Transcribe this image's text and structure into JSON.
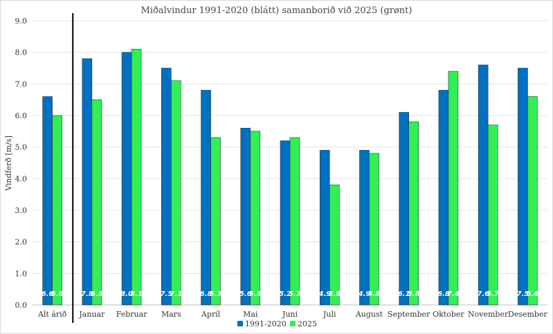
{
  "chart_data": {
    "type": "bar",
    "title": "Miðalvindur 1991-2020 (blátt) samanborið við 2025 (grønt)",
    "xlabel": "",
    "ylabel": "Vindferð [m/s]",
    "ylim": [
      0,
      9
    ],
    "yticks": [
      "0.0",
      "1.0",
      "2.0",
      "3.0",
      "4.0",
      "5.0",
      "6.0",
      "7.0",
      "8.0",
      "9.0"
    ],
    "grid": true,
    "legend_position": "bottom",
    "categories": [
      "Alt árið",
      "Januar",
      "Februar",
      "Mars",
      "Apríl",
      "Mai",
      "Juni",
      "Juli",
      "August",
      "September",
      "Oktober",
      "November",
      "Desember"
    ],
    "series": [
      {
        "name": "1991-2020",
        "color": "#0070c0",
        "values": [
          6.6,
          7.8,
          8.0,
          7.5,
          6.8,
          5.6,
          5.2,
          4.9,
          4.9,
          6.1,
          6.8,
          7.6,
          7.5
        ],
        "labels": [
          "6.6",
          "7.8",
          "8.0",
          "7.5",
          "6.8",
          "5.6",
          "5.2",
          "4.9",
          "4.9",
          "6.1",
          "6.8",
          "7.6",
          "7.5"
        ]
      },
      {
        "name": "2025",
        "color": "#33ee55",
        "values": [
          6.0,
          6.5,
          8.1,
          7.1,
          5.3,
          5.5,
          5.3,
          3.8,
          4.8,
          5.8,
          7.4,
          5.7,
          6.6
        ],
        "labels": [
          "6.0",
          "6.5",
          "8.1",
          "7.1",
          "5.3",
          "5.5",
          "5.3",
          "3.8",
          "4.8",
          "5.8",
          "7.4",
          "5.7",
          "6.6"
        ]
      }
    ]
  }
}
